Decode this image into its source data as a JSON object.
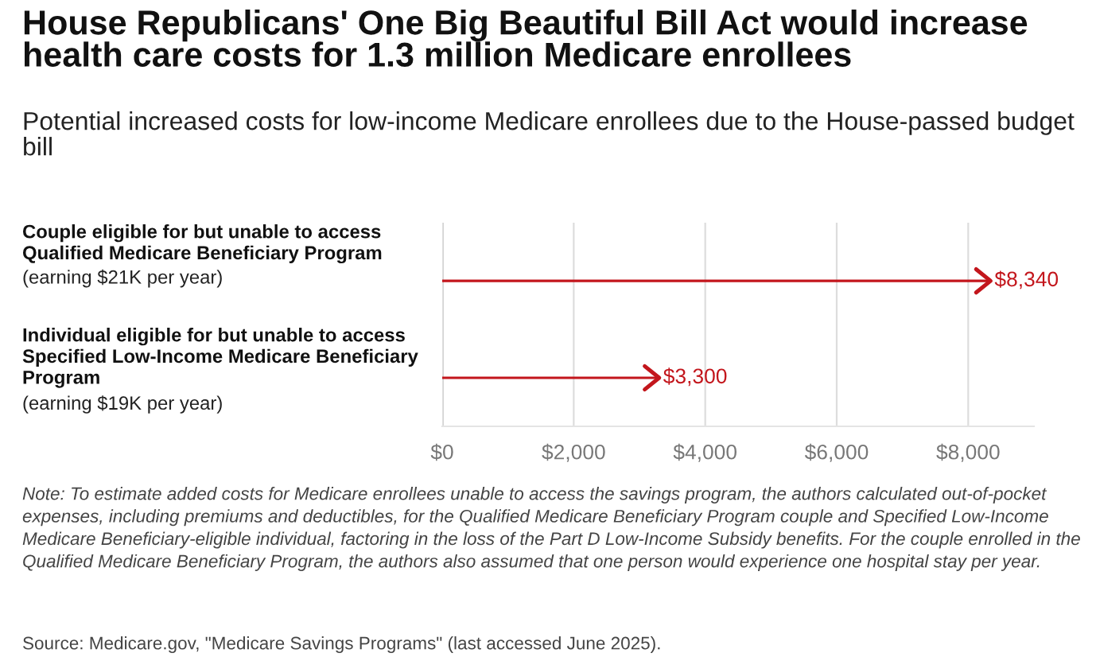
{
  "chart_data": {
    "type": "bar",
    "orientation": "horizontal",
    "title": "House Republicans' One Big Beautiful Bill Act would increase health care costs for 1.3 million Medicare enrollees",
    "subtitle": "Potential increased costs for low-income Medicare enrollees due to the House-passed budget bill",
    "categories": [
      "Couple eligible for but unable to access\nQualified Medicare Beneficiary Program\n(earning $21K per year)",
      "Individual eligible for but unable to access\nSpecified Low-Income Medicare Beneficiary\nProgram\n(earning $19K per year)"
    ],
    "values": [
      8340,
      3300
    ],
    "color": "#c3161c",
    "value_labels": [
      "$8,340",
      "$3,300"
    ],
    "xlim": [
      0,
      9000
    ],
    "xticks": [
      {
        "value": 0,
        "label": "$0"
      },
      {
        "value": 2000,
        "label": "$2,000"
      },
      {
        "value": 4000,
        "label": "$4,000"
      },
      {
        "value": 6000,
        "label": "$6,000"
      },
      {
        "value": 8000,
        "label": "$8,000"
      }
    ],
    "grid": "x",
    "annotations": [
      "Note: To estimate added costs for Medicare enrollees unable to access the savings program, the authors calculated out-of-pocket expenses, including premiums and deductibles, for the Qualified Medicare Beneficiary Program couple and Specified Low-Income Medicare Beneficiary-eligible individual, factoring in the loss of the Part D Low-Income Subsidy benefits. For the couple enrolled in the Qualified Medicare Beneficiary Program, the authors also assumed that one person would experience one hospital stay per year.",
      "Source: Medicare.gov, \"Medicare Savings Programs\" (last accessed June 2025)."
    ]
  }
}
